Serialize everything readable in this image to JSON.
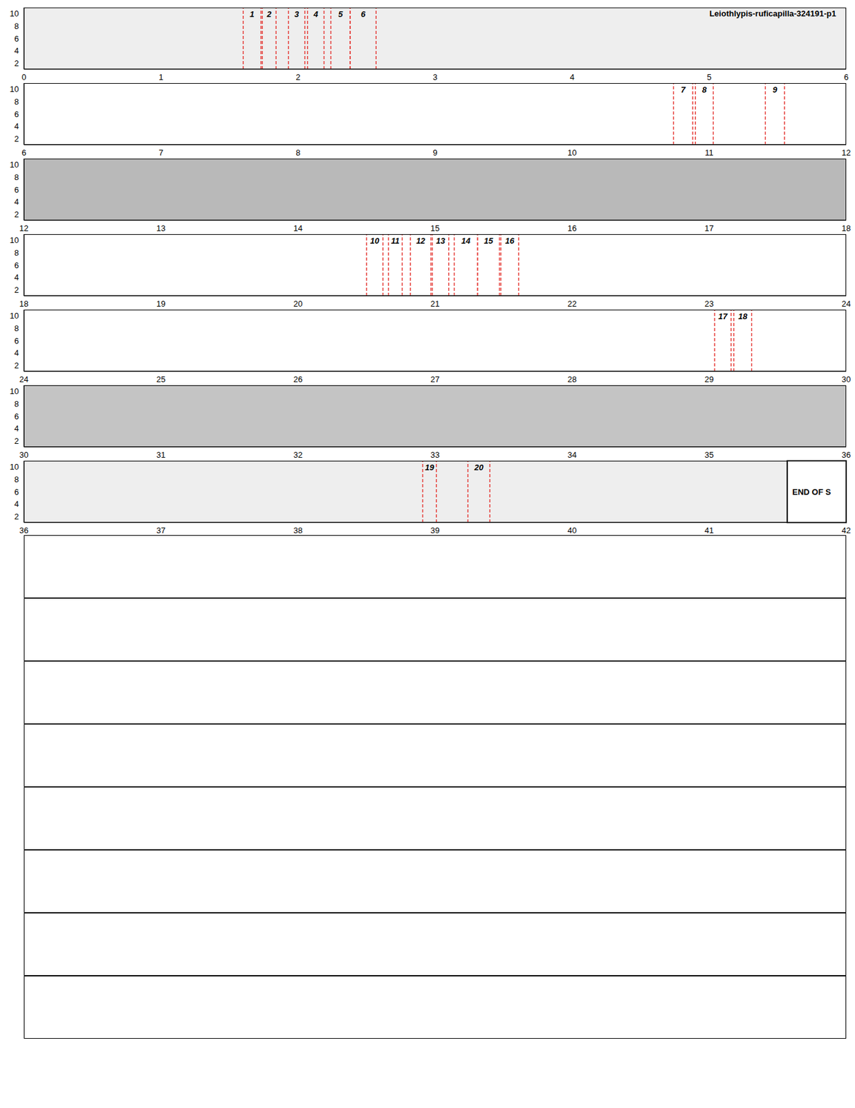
{
  "chart_data": [
    {
      "type": "spectrogram",
      "title": "Leiothlypis-ruficapilla-324191-p1",
      "xlim": [
        0,
        6
      ],
      "xticks": [
        0,
        1,
        2,
        3,
        4,
        5,
        6
      ],
      "ylim": [
        1,
        11
      ],
      "yticks": [
        2,
        4,
        6,
        8,
        10
      ],
      "color": "#e53935",
      "segments": [
        {
          "label": "1",
          "start": 1.6,
          "end": 1.73
        },
        {
          "label": "2",
          "start": 1.74,
          "end": 1.84
        },
        {
          "label": "3",
          "start": 1.93,
          "end": 2.05
        },
        {
          "label": "4",
          "start": 2.07,
          "end": 2.19
        },
        {
          "label": "5",
          "start": 2.24,
          "end": 2.38
        },
        {
          "label": "6",
          "start": 2.38,
          "end": 2.57
        }
      ]
    },
    {
      "type": "spectrogram",
      "xlim": [
        6,
        12
      ],
      "xticks": [
        6,
        7,
        8,
        9,
        10,
        11,
        12
      ],
      "ylim": [
        1,
        11
      ],
      "yticks": [
        2,
        4,
        6,
        8,
        10
      ],
      "color": "#e53935",
      "segments": [
        {
          "label": "7",
          "start": 10.74,
          "end": 10.88
        },
        {
          "label": "8",
          "start": 10.9,
          "end": 11.03
        },
        {
          "label": "9",
          "start": 11.41,
          "end": 11.55
        }
      ]
    },
    {
      "type": "spectrogram",
      "xlim": [
        12,
        18
      ],
      "xticks": [
        12,
        13,
        14,
        15,
        16,
        17,
        18
      ],
      "ylim": [
        1,
        11
      ],
      "yticks": [
        2,
        4,
        6,
        8,
        10
      ],
      "color": "#e53935",
      "segments": []
    },
    {
      "type": "spectrogram",
      "xlim": [
        18,
        24
      ],
      "xticks": [
        18,
        19,
        20,
        21,
        22,
        23,
        24
      ],
      "ylim": [
        1,
        11
      ],
      "yticks": [
        2,
        4,
        6,
        8,
        10
      ],
      "color": "#e53935",
      "segments": [
        {
          "label": "10",
          "start": 20.5,
          "end": 20.62
        },
        {
          "label": "11",
          "start": 20.66,
          "end": 20.76
        },
        {
          "label": "12",
          "start": 20.82,
          "end": 20.97
        },
        {
          "label": "13",
          "start": 20.98,
          "end": 21.1
        },
        {
          "label": "14",
          "start": 21.14,
          "end": 21.31
        },
        {
          "label": "15",
          "start": 21.31,
          "end": 21.47
        },
        {
          "label": "16",
          "start": 21.48,
          "end": 21.61
        }
      ]
    },
    {
      "type": "spectrogram",
      "xlim": [
        24,
        30
      ],
      "xticks": [
        24,
        25,
        26,
        27,
        28,
        29,
        30
      ],
      "ylim": [
        1,
        11
      ],
      "yticks": [
        2,
        4,
        6,
        8,
        10
      ],
      "color": "#e53935",
      "segments": [
        {
          "label": "17",
          "start": 29.04,
          "end": 29.16
        },
        {
          "label": "18",
          "start": 29.18,
          "end": 29.31
        }
      ]
    },
    {
      "type": "spectrogram",
      "xlim": [
        30,
        36
      ],
      "xticks": [
        30,
        31,
        32,
        33,
        34,
        35,
        36
      ],
      "ylim": [
        1,
        11
      ],
      "yticks": [
        2,
        4,
        6,
        8,
        10
      ],
      "color": "#e53935",
      "segments": []
    },
    {
      "type": "spectrogram",
      "xlim": [
        36,
        42
      ],
      "xticks": [
        36,
        37,
        38,
        39,
        40,
        41,
        42
      ],
      "ylim": [
        1,
        11
      ],
      "yticks": [
        2,
        4,
        6,
        8,
        10
      ],
      "color": "#e53935",
      "segments": [
        {
          "label": "19",
          "start": 38.91,
          "end": 39.01
        },
        {
          "label": "20",
          "start": 39.24,
          "end": 39.4
        }
      ],
      "end_marker": {
        "label": "END OF S",
        "start": 41.57
      }
    },
    {
      "type": "empty"
    },
    {
      "type": "empty"
    },
    {
      "type": "empty"
    },
    {
      "type": "empty"
    },
    {
      "type": "empty"
    },
    {
      "type": "empty"
    },
    {
      "type": "empty"
    },
    {
      "type": "empty"
    }
  ]
}
